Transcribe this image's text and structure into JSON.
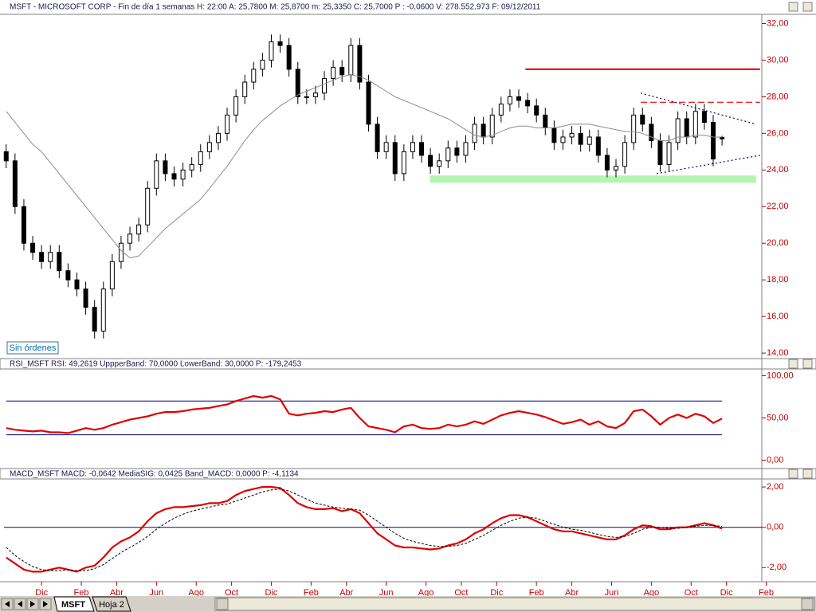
{
  "chart_data": [
    {
      "type": "candlestick",
      "title": "MSFT - MICROSOFT CORP - Fin de día 1 semanas  H: 22:00  A: 25,7800  M: 25,8700  m: 25,3350  C: 25,7000  P : -0,0600  V: 278.552.973  F: 09/12/2011",
      "x": [
        0,
        2,
        4,
        6,
        8,
        10,
        12,
        14,
        16,
        18,
        20,
        22,
        24,
        26,
        28,
        30,
        32,
        34,
        36,
        38,
        40,
        42,
        44,
        46,
        48,
        50,
        52,
        54,
        56,
        58,
        60,
        62,
        64,
        66,
        68,
        70,
        72,
        74,
        76,
        78,
        80,
        82,
        84,
        86,
        88,
        90,
        92,
        94,
        96,
        98,
        100,
        102,
        104,
        106,
        108,
        110,
        112,
        114,
        116,
        118,
        120,
        122,
        124,
        126,
        128,
        130,
        132,
        134,
        136,
        138,
        140,
        142,
        144,
        146,
        148,
        150,
        152,
        154,
        156,
        158,
        160,
        162
      ],
      "open": [
        25,
        24.5,
        22,
        20,
        19.5,
        19,
        19.5,
        18.5,
        18,
        17.5,
        16.5,
        15.2,
        17.5,
        19,
        20,
        20.5,
        21,
        23,
        24.5,
        23.8,
        23.5,
        24,
        24.3,
        25,
        25.5,
        26,
        27,
        28,
        28.8,
        29.5,
        30,
        31,
        30.8,
        29.5,
        28,
        28,
        28.2,
        29,
        29.6,
        29.2,
        30.8,
        28.8,
        26.5,
        25,
        25.5,
        23.8,
        25,
        25.5,
        24.8,
        24.2,
        24.5,
        25.2,
        24.8,
        25.5,
        26.5,
        25.8,
        27,
        27.6,
        28,
        27.8,
        27.5,
        27,
        26.3,
        25.5,
        25.8,
        26,
        25.4,
        25.8,
        24.8,
        24,
        24.2,
        25.5,
        27,
        26.5,
        25.6,
        24.3,
        25.5,
        26.8,
        25.8,
        27.2,
        26.6,
        25.78
      ],
      "high": [
        25.4,
        24.9,
        22.4,
        20.4,
        19.9,
        19.9,
        19.9,
        18.9,
        18.4,
        17.9,
        16.9,
        17.9,
        19.4,
        20.4,
        20.9,
        21.4,
        23.4,
        24.9,
        24.9,
        24.2,
        24.4,
        24.7,
        25.4,
        25.9,
        26.4,
        27.4,
        28.4,
        29.2,
        29.9,
        30.4,
        31.4,
        31.4,
        31.2,
        29.9,
        28.4,
        28.6,
        29.4,
        30,
        30,
        31.2,
        31.2,
        29.2,
        26.9,
        25.9,
        25.9,
        25.4,
        25.9,
        25.9,
        25.2,
        24.9,
        25.6,
        25.6,
        25.9,
        26.9,
        26.9,
        27.4,
        28,
        28.4,
        28.4,
        28.2,
        27.9,
        27.4,
        26.7,
        26.2,
        26.4,
        26.4,
        26.2,
        26.2,
        25.2,
        24.6,
        25.9,
        27.4,
        27.4,
        26.9,
        26,
        25.9,
        27.2,
        27.2,
        27.6,
        27.6,
        27,
        25.87
      ],
      "low": [
        24.1,
        21.6,
        19.6,
        19.1,
        18.6,
        18.6,
        18.1,
        17.6,
        17.1,
        16.1,
        14.8,
        14.8,
        17.1,
        18.6,
        19.6,
        20.1,
        20.6,
        22.6,
        23.4,
        23.1,
        23.1,
        23.6,
        23.9,
        24.6,
        25.1,
        25.6,
        26.6,
        27.6,
        28.4,
        29.1,
        29.6,
        30.4,
        29.1,
        27.6,
        27.6,
        27.6,
        27.8,
        28.6,
        28.8,
        28.8,
        28.4,
        26.1,
        24.6,
        24.6,
        23.4,
        23.4,
        24.6,
        24.4,
        23.8,
        23.8,
        24.1,
        24.4,
        24.4,
        25.1,
        25.4,
        25.4,
        26.6,
        27.2,
        27.4,
        27.1,
        26.6,
        25.9,
        25.1,
        25.1,
        25.4,
        25,
        25,
        24.4,
        23.6,
        23.6,
        23.8,
        25.1,
        26.1,
        25.2,
        23.9,
        23.9,
        25.1,
        25.4,
        25.4,
        26.2,
        24.2,
        25.335
      ],
      "close": [
        24.5,
        22,
        20,
        19.5,
        19,
        19.5,
        18.5,
        18,
        17.5,
        16.5,
        15.2,
        17.5,
        19,
        20,
        20.5,
        21,
        23,
        24.5,
        23.8,
        23.5,
        24,
        24.3,
        25,
        25.5,
        26,
        27,
        28,
        28.8,
        29.5,
        30,
        31,
        30.8,
        29.5,
        28,
        28,
        28.2,
        29,
        29.6,
        29.2,
        30.8,
        28.8,
        26.5,
        25,
        25.5,
        23.8,
        25,
        25.5,
        24.8,
        24.2,
        24.5,
        25.2,
        24.8,
        25.5,
        26.5,
        25.8,
        27,
        27.6,
        28,
        27.8,
        27.5,
        27,
        26.3,
        25.5,
        25.8,
        26,
        25.4,
        25.8,
        24.8,
        24,
        24.2,
        25.5,
        27,
        26.5,
        25.6,
        24.3,
        25.5,
        26.8,
        25.8,
        27.2,
        26.6,
        24.6,
        25.7
      ],
      "color": "#000000",
      "series": [
        {
          "color": "#8c8c8c",
          "width": 1,
          "values": [
            27.2,
            26.6,
            26.0,
            25.4,
            25.0,
            24.4,
            23.8,
            23.2,
            22.6,
            22.0,
            21.4,
            20.8,
            20.2,
            19.6,
            19.2,
            19.3,
            19.8,
            20.3,
            20.8,
            21.2,
            21.6,
            22.0,
            22.4,
            23.0,
            23.6,
            24.2,
            24.9,
            25.6,
            26.2,
            26.7,
            27.1,
            27.5,
            27.8,
            28.1,
            28.3,
            28.5,
            28.7,
            28.9,
            29.1,
            29.2,
            29.1,
            28.9,
            28.6,
            28.3,
            28.0,
            27.8,
            27.6,
            27.4,
            27.2,
            27.0,
            26.8,
            26.5,
            26.2,
            25.9,
            25.8,
            25.9,
            26.1,
            26.3,
            26.4,
            26.4,
            26.3,
            26.3,
            26.3,
            26.4,
            26.5,
            26.5,
            26.5,
            26.4,
            26.3,
            26.2,
            26.1,
            26.1,
            26.0,
            25.8,
            25.6,
            25.6,
            25.8,
            25.8,
            25.9,
            25.9,
            25.8,
            25.8
          ]
        }
      ],
      "annotations": [
        {
          "type": "band",
          "x": [
            95.9,
            169.7
          ],
          "y": [
            23.3,
            23.7
          ],
          "color": "#b4f5b4"
        },
        {
          "type": "segment",
          "x": [
            117.5,
            170.6
          ],
          "y": [
            29.5,
            29.5
          ],
          "color": "#e00000",
          "style": "solid"
        },
        {
          "type": "segment",
          "x": [
            143.6,
            170.6
          ],
          "y": [
            27.7,
            27.7
          ],
          "color": "#e00000",
          "style": "dashed"
        },
        {
          "type": "segment",
          "x": [
            143.6,
            169.7
          ],
          "y": [
            28.2,
            26.5
          ],
          "color": "#000080",
          "style": "dotted"
        },
        {
          "type": "segment",
          "x": [
            147.2,
            170.6
          ],
          "y": [
            23.8,
            24.8
          ],
          "color": "#000080",
          "style": "dotted"
        }
      ],
      "xlim": [
        -0.5,
        171
      ],
      "ylim": [
        13.7,
        32.5
      ],
      "yticks": [
        {
          "value": 14,
          "label": "14,00"
        },
        {
          "value": 16,
          "label": "16,00"
        },
        {
          "value": 18,
          "label": "18,00"
        },
        {
          "value": 20,
          "label": "20,00"
        },
        {
          "value": 22,
          "label": "22,00"
        },
        {
          "value": 24,
          "label": "24,00"
        },
        {
          "value": 26,
          "label": "26,00"
        },
        {
          "value": 28,
          "label": "28,00"
        },
        {
          "value": 30,
          "label": "30,00"
        },
        {
          "value": 32,
          "label": "32,00"
        }
      ]
    },
    {
      "type": "line",
      "title": "RSI_MSFT  RSI: 49,2619  UppperBand: 70,0000  LowerBand: 30,0000  P: -179,2453",
      "x": [
        0,
        2,
        4,
        6,
        8,
        10,
        12,
        14,
        16,
        18,
        20,
        22,
        24,
        26,
        28,
        30,
        32,
        34,
        36,
        38,
        40,
        42,
        44,
        46,
        48,
        50,
        52,
        54,
        56,
        58,
        60,
        62,
        64,
        66,
        68,
        70,
        72,
        74,
        76,
        78,
        80,
        82,
        84,
        86,
        88,
        90,
        92,
        94,
        96,
        98,
        100,
        102,
        104,
        106,
        108,
        110,
        112,
        114,
        116,
        118,
        120,
        122,
        124,
        126,
        128,
        130,
        132,
        134,
        136,
        138,
        140,
        142,
        144,
        146,
        148,
        150,
        152,
        154,
        156,
        158,
        160,
        162
      ],
      "series": [
        {
          "color": "#e00000",
          "width": 2.2,
          "values": [
            38,
            36,
            35,
            34,
            35,
            33,
            33,
            32,
            35,
            38,
            36,
            38,
            42,
            45,
            48,
            50,
            52,
            55,
            57,
            57,
            58,
            60,
            61,
            62,
            64,
            66,
            70,
            73,
            76,
            74,
            76,
            72,
            55,
            53,
            55,
            56,
            58,
            57,
            60,
            62,
            50,
            40,
            38,
            36,
            33,
            40,
            42,
            38,
            37,
            38,
            42,
            40,
            42,
            46,
            43,
            48,
            53,
            56,
            58,
            56,
            54,
            51,
            47,
            43,
            45,
            48,
            42,
            46,
            40,
            38,
            44,
            58,
            60,
            52,
            42,
            50,
            54,
            50,
            55,
            52,
            44,
            49.2619
          ]
        }
      ],
      "band_values": [
        70,
        30
      ],
      "band_color": "#000080",
      "xlim": [
        -0.5,
        171
      ],
      "ylim": [
        -9,
        108
      ],
      "yticks": [
        {
          "value": 0,
          "label": "0,00"
        },
        {
          "value": 50,
          "label": "50,00"
        },
        {
          "value": 100,
          "label": "100,00"
        }
      ]
    },
    {
      "type": "line",
      "title": "MACD_MSFT  MACD: -0,0642  MediaSIG: 0,0425  Band_MACD: 0,0000  P: -4,1134",
      "x": [
        0,
        2,
        4,
        6,
        8,
        10,
        12,
        14,
        16,
        18,
        20,
        22,
        24,
        26,
        28,
        30,
        32,
        34,
        36,
        38,
        40,
        42,
        44,
        46,
        48,
        50,
        52,
        54,
        56,
        58,
        60,
        62,
        64,
        66,
        68,
        70,
        72,
        74,
        76,
        78,
        80,
        82,
        84,
        86,
        88,
        90,
        92,
        94,
        96,
        98,
        100,
        102,
        104,
        106,
        108,
        110,
        112,
        114,
        116,
        118,
        120,
        122,
        124,
        126,
        128,
        130,
        132,
        134,
        136,
        138,
        140,
        142,
        144,
        146,
        148,
        150,
        152,
        154,
        156,
        158,
        160,
        162
      ],
      "series": [
        {
          "color": "#e00000",
          "width": 2.2,
          "values": [
            -1.5,
            -1.8,
            -2.1,
            -2.2,
            -2.2,
            -2.1,
            -2.0,
            -2.1,
            -2.2,
            -2.0,
            -1.9,
            -1.5,
            -1.0,
            -0.7,
            -0.5,
            -0.2,
            0.3,
            0.7,
            0.9,
            1.0,
            1.0,
            1.05,
            1.1,
            1.2,
            1.2,
            1.3,
            1.6,
            1.8,
            1.9,
            2.0,
            2.0,
            1.95,
            1.6,
            1.2,
            1.0,
            0.9,
            0.9,
            0.95,
            0.8,
            0.9,
            0.7,
            0.2,
            -0.3,
            -0.6,
            -0.9,
            -1.0,
            -1.0,
            -1.05,
            -1.1,
            -1.05,
            -0.9,
            -0.8,
            -0.6,
            -0.3,
            -0.1,
            0.2,
            0.45,
            0.6,
            0.6,
            0.5,
            0.3,
            0.1,
            -0.1,
            -0.2,
            -0.2,
            -0.3,
            -0.4,
            -0.5,
            -0.6,
            -0.6,
            -0.4,
            -0.1,
            0.1,
            0.05,
            -0.1,
            -0.1,
            0.0,
            0.0,
            0.1,
            0.2,
            0.1,
            -0.0642
          ]
        },
        {
          "color": "#000000",
          "width": 1,
          "dash": true,
          "values": [
            -1.0,
            -1.4,
            -1.7,
            -1.95,
            -2.1,
            -2.15,
            -2.15,
            -2.1,
            -2.15,
            -2.15,
            -2.05,
            -1.85,
            -1.55,
            -1.25,
            -1.0,
            -0.75,
            -0.45,
            -0.1,
            0.2,
            0.45,
            0.65,
            0.8,
            0.9,
            1.0,
            1.1,
            1.15,
            1.3,
            1.45,
            1.6,
            1.75,
            1.85,
            1.9,
            1.8,
            1.6,
            1.4,
            1.2,
            1.1,
            1.0,
            0.95,
            0.9,
            0.85,
            0.6,
            0.3,
            0.0,
            -0.3,
            -0.55,
            -0.7,
            -0.8,
            -0.9,
            -0.95,
            -0.95,
            -0.9,
            -0.8,
            -0.6,
            -0.4,
            -0.15,
            0.1,
            0.3,
            0.45,
            0.5,
            0.45,
            0.3,
            0.15,
            0.0,
            -0.1,
            -0.15,
            -0.25,
            -0.35,
            -0.45,
            -0.5,
            -0.45,
            -0.3,
            -0.1,
            0.0,
            0.0,
            -0.05,
            -0.05,
            0.0,
            0.05,
            0.1,
            0.1,
            0.0425
          ]
        }
      ],
      "band_values": [
        0
      ],
      "band_color": "#000080",
      "xlim": [
        -0.5,
        171
      ],
      "ylim": [
        -2.7,
        2.4
      ],
      "yticks": [
        {
          "value": -2,
          "label": "-2,00"
        },
        {
          "value": 0,
          "label": "0,00"
        },
        {
          "value": 2,
          "label": "2,00"
        }
      ],
      "xticks": [
        {
          "value": 8,
          "label": "Dic"
        },
        {
          "value": 17,
          "label": "Feb"
        },
        {
          "value": 25,
          "label": "Abr"
        },
        {
          "value": 34,
          "label": "Jun"
        },
        {
          "value": 43,
          "label": "Ago"
        },
        {
          "value": 51,
          "label": "Oct"
        },
        {
          "value": 60,
          "label": "Dic"
        },
        {
          "value": 69,
          "label": "Feb"
        },
        {
          "value": 77,
          "label": "Abr"
        },
        {
          "value": 86,
          "label": "Jun"
        },
        {
          "value": 95,
          "label": "Ago"
        },
        {
          "value": 103,
          "label": "Oct"
        },
        {
          "value": 111,
          "label": "Dic"
        },
        {
          "value": 120,
          "label": "Feb"
        },
        {
          "value": 128,
          "label": "Abr"
        },
        {
          "value": 137,
          "label": "Jun"
        },
        {
          "value": 146,
          "label": "Ago"
        },
        {
          "value": 155,
          "label": "Oct"
        },
        {
          "value": 163,
          "label": "Dic"
        },
        {
          "value": 172,
          "label": "Feb"
        }
      ]
    }
  ],
  "ui": {
    "button": "Sin órdenes",
    "tabs": [
      "MSFT",
      "Hoja 2"
    ]
  }
}
